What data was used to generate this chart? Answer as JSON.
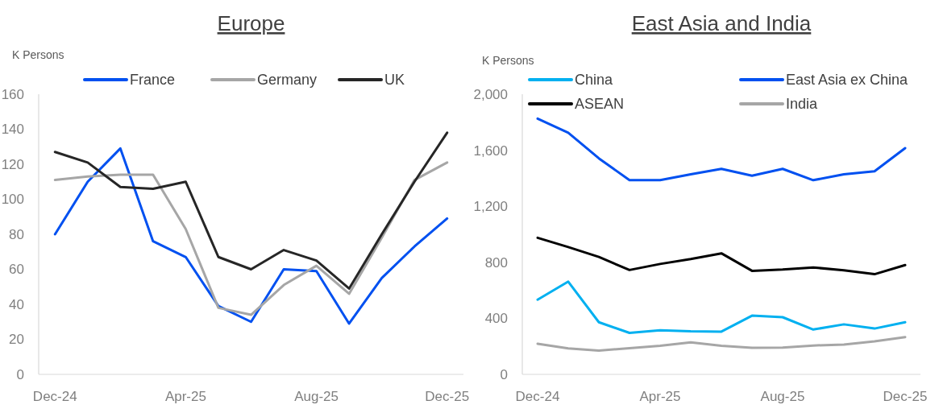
{
  "chart_data": [
    {
      "type": "line",
      "title": "Europe",
      "ylabel": "K Persons",
      "categories": [
        "Dec-24",
        null,
        null,
        null,
        "Apr-25",
        null,
        null,
        null,
        "Aug-25",
        null,
        null,
        null,
        "Dec-25"
      ],
      "ylim": [
        0,
        160
      ],
      "yticks": [
        0,
        20,
        40,
        60,
        80,
        100,
        120,
        140,
        160
      ],
      "legend": "top",
      "grid": false,
      "series": [
        {
          "name": "France",
          "color": "#0050f0",
          "values": [
            80,
            110,
            129,
            76,
            67,
            39,
            30,
            60,
            59,
            29,
            55,
            73,
            89
          ]
        },
        {
          "name": "Germany",
          "color": "#a6a6a6",
          "values": [
            111,
            113,
            114,
            114,
            83,
            38,
            34,
            51,
            62,
            46,
            78,
            111,
            121
          ]
        },
        {
          "name": "UK",
          "color": "#262626",
          "values": [
            127,
            121,
            107,
            106,
            110,
            67,
            60,
            71,
            65,
            49,
            80,
            110,
            138
          ]
        }
      ]
    },
    {
      "type": "line",
      "title": "East Asia and India",
      "ylabel": "K Persons",
      "categories": [
        "Dec-24",
        null,
        null,
        null,
        "Apr-25",
        null,
        null,
        null,
        "Aug-25",
        null,
        null,
        null,
        "Dec-25"
      ],
      "ylim": [
        0,
        2000
      ],
      "yticks": [
        {
          "value": 0,
          "label": "0"
        },
        {
          "value": 400,
          "label": "400"
        },
        {
          "value": 800,
          "label": "800"
        },
        {
          "value": 1200,
          "label": "1,200"
        },
        {
          "value": 1600,
          "label": "1,600"
        },
        {
          "value": 2000,
          "label": "2,000"
        }
      ],
      "legend": "top",
      "grid": false,
      "series": [
        {
          "name": "China",
          "color": "#00b0f0",
          "values": [
            533,
            662,
            372,
            296,
            314,
            307,
            305,
            419,
            408,
            320,
            357,
            327,
            372
          ]
        },
        {
          "name": "East Asia ex China",
          "color": "#0050f0",
          "values": [
            1826,
            1725,
            1542,
            1386,
            1386,
            1428,
            1467,
            1418,
            1467,
            1386,
            1428,
            1450,
            1615
          ]
        },
        {
          "name": "ASEAN",
          "color": "#000000",
          "values": [
            975,
            909,
            838,
            745,
            788,
            823,
            864,
            739,
            748,
            763,
            743,
            715,
            780
          ]
        },
        {
          "name": "India",
          "color": "#a6a6a6",
          "values": [
            219,
            185,
            170,
            187,
            204,
            228,
            204,
            189,
            191,
            206,
            213,
            236,
            266
          ]
        }
      ]
    }
  ]
}
